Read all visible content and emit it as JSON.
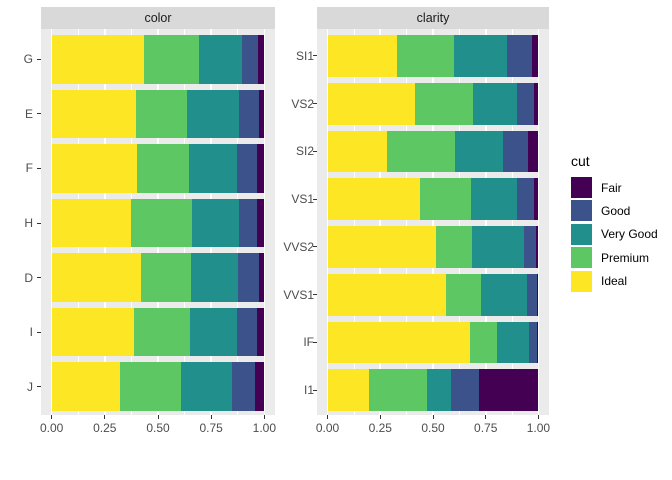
{
  "figure": {
    "background": "#FFFFFF",
    "panel_background": "#EBEBEB",
    "strip_background": "#D9D9D9",
    "gridline_color": "#FFFFFF",
    "axis_text_color": "#4D4D4D",
    "tick_color": "#333333"
  },
  "legend": {
    "title": "cut",
    "position": "right",
    "items": [
      {
        "label": "Fair",
        "color": "#440154"
      },
      {
        "label": "Good",
        "color": "#3B528B"
      },
      {
        "label": "Very Good",
        "color": "#21908C"
      },
      {
        "label": "Premium",
        "color": "#5DC863"
      },
      {
        "label": "Ideal",
        "color": "#FDE725"
      }
    ]
  },
  "chart_data": [
    {
      "type": "bar",
      "orientation": "horizontal",
      "stacked": true,
      "normalized": true,
      "facet_title": "color",
      "categories": [
        "G",
        "E",
        "F",
        "H",
        "D",
        "I",
        "J"
      ],
      "x_ticks": [
        "0.00",
        "0.25",
        "0.50",
        "0.75",
        "1.00"
      ],
      "x_tick_values": [
        0,
        0.25,
        0.5,
        0.75,
        1.0
      ],
      "x_minor_ticks": [
        0.125,
        0.375,
        0.625,
        0.875
      ],
      "xlim": [
        0,
        1
      ],
      "grid": true,
      "series": [
        {
          "name": "Ideal",
          "color": "#FDE725",
          "values": [
            0.4325,
            0.3984,
            0.401,
            0.3751,
            0.4183,
            0.386,
            0.3191
          ]
        },
        {
          "name": "Premium",
          "color": "#5DC863",
          "values": [
            0.2589,
            0.2385,
            0.2443,
            0.2842,
            0.2366,
            0.2634,
            0.2877
          ]
        },
        {
          "name": "Very Good",
          "color": "#21908C",
          "values": [
            0.2036,
            0.245,
            0.2268,
            0.2197,
            0.2233,
            0.2221,
            0.2414
          ]
        },
        {
          "name": "Good",
          "color": "#3B528B",
          "values": [
            0.0771,
            0.0952,
            0.0953,
            0.0845,
            0.0977,
            0.0963,
            0.1093
          ]
        },
        {
          "name": "Fair",
          "color": "#440154",
          "values": [
            0.0278,
            0.0229,
            0.0327,
            0.0365,
            0.0241,
            0.0323,
            0.0424
          ]
        }
      ]
    },
    {
      "type": "bar",
      "orientation": "horizontal",
      "stacked": true,
      "normalized": true,
      "facet_title": "clarity",
      "categories": [
        "SI1",
        "VS2",
        "SI2",
        "VS1",
        "VVS2",
        "VVS1",
        "IF",
        "I1"
      ],
      "x_ticks": [
        "0.00",
        "0.25",
        "0.50",
        "0.75",
        "1.00"
      ],
      "x_tick_values": [
        0,
        0.25,
        0.5,
        0.75,
        1.0
      ],
      "x_minor_ticks": [
        0.125,
        0.375,
        0.625,
        0.875
      ],
      "xlim": [
        0,
        1
      ],
      "grid": true,
      "series": [
        {
          "name": "Ideal",
          "color": "#FDE725",
          "values": [
            0.3277,
            0.4137,
            0.2826,
            0.4392,
            0.5144,
            0.5601,
            0.6771,
            0.197
          ]
        },
        {
          "name": "Premium",
          "color": "#5DC863",
          "values": [
            0.2736,
            0.2739,
            0.3208,
            0.2434,
            0.1717,
            0.1685,
            0.1285,
            0.2767
          ]
        },
        {
          "name": "Very Good",
          "color": "#21908C",
          "values": [
            0.248,
            0.2114,
            0.2284,
            0.2172,
            0.2438,
            0.2159,
            0.1497,
            0.1134
          ]
        },
        {
          "name": "Good",
          "color": "#3B528B",
          "values": [
            0.1194,
            0.0798,
            0.1176,
            0.0793,
            0.0565,
            0.0509,
            0.0397,
            0.1296
          ]
        },
        {
          "name": "Fair",
          "color": "#440154",
          "values": [
            0.0312,
            0.0213,
            0.0507,
            0.0208,
            0.0136,
            0.0047,
            0.005,
            0.2834
          ]
        }
      ]
    }
  ]
}
